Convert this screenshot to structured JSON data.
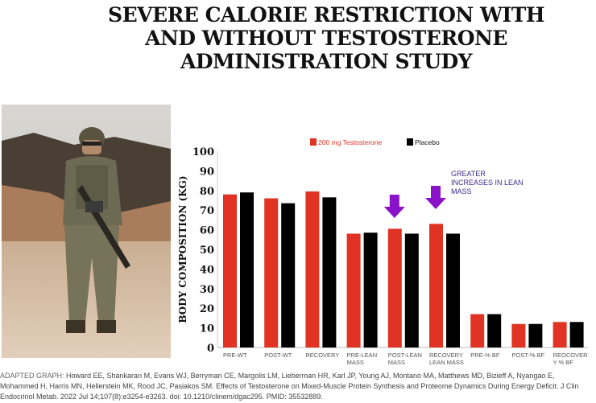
{
  "title": [
    "SEVERE CALORIE RESTRICTION WITH",
    "AND WITHOUT TESTOSTERONE",
    "ADMINISTRATION STUDY"
  ],
  "chart_data": {
    "type": "bar",
    "ylabel": "BODY COMPOSITION (KG)",
    "ylim": [
      0,
      100
    ],
    "yticks": [
      0,
      10,
      20,
      30,
      40,
      50,
      60,
      70,
      80,
      90,
      100
    ],
    "categories": [
      "PRE-WT",
      "POST-WT",
      "RECOVERY",
      "PRE-LEAN MASS",
      "POST-LEAN MASS",
      "RECOVERY LEAN MASS",
      "PRE-% BF",
      "POST-% BF",
      "REOCOVER Y % BF"
    ],
    "series": [
      {
        "name": "200 mg Testosterone",
        "color": "#e03323",
        "values": [
          78,
          76,
          79.5,
          58,
          60.5,
          63,
          17,
          12,
          13
        ]
      },
      {
        "name": "Placebo",
        "color": "#000000",
        "values": [
          79,
          73.5,
          76.5,
          58.5,
          58,
          58,
          17,
          12,
          13
        ]
      }
    ],
    "legend": "top",
    "grid": false,
    "annotation": {
      "text": "GREATER INCREASES IN LEAN MASS",
      "color": "#3d2a8a",
      "arrow_color": "#8a12c8",
      "arrow_targets": [
        "POST-LEAN MASS",
        "RECOVERY LEAN MASS"
      ]
    }
  },
  "caption": {
    "lead": "ADAPTED GRAPH:",
    "text": " Howard EE, Shankaran M, Evans WJ, Berryman CE, Margolis LM, Lieberman HR, Karl JP, Young AJ, Montano MA, Matthews MD, Bizieff A, Nyangao E, Mohammed H, Harris MN, Hellerstein MK, Rood JC, Pasiakos SM. Effects of Testosterone on Mixed-Muscle Protein Synthesis and Proteome Dynamics During Energy Deficit. J Clin Endocrinol Metab. 2022 Jul 14;107(8):e3254-e3263. doi: 10.1210/clinem/dgac295. PMID: 35532889."
  }
}
